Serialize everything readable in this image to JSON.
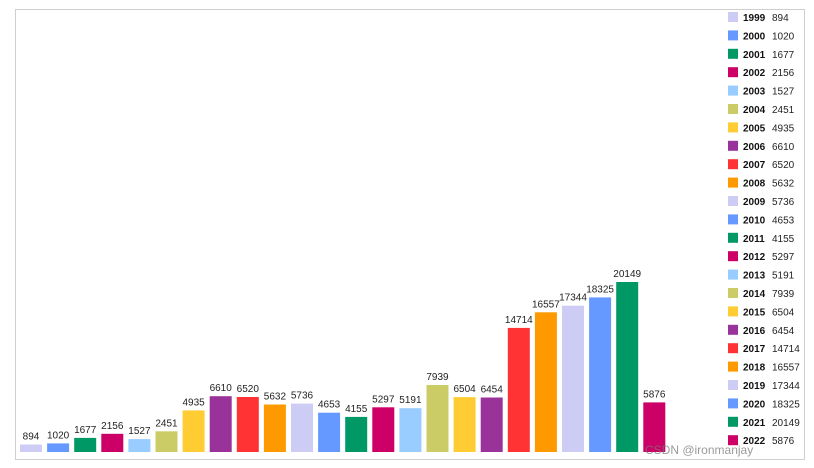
{
  "chart_data": {
    "type": "bar",
    "categories": [
      "1999",
      "2000",
      "2001",
      "2002",
      "2003",
      "2004",
      "2005",
      "2006",
      "2007",
      "2008",
      "2009",
      "2010",
      "2011",
      "2012",
      "2013",
      "2014",
      "2015",
      "2016",
      "2017",
      "2018",
      "2019",
      "2020",
      "2021",
      "2022"
    ],
    "values": [
      894,
      1020,
      1677,
      2156,
      1527,
      2451,
      4935,
      6610,
      6520,
      5632,
      5736,
      4653,
      4155,
      5297,
      5191,
      7939,
      6504,
      6454,
      14714,
      16557,
      17344,
      18325,
      20149,
      5876
    ],
    "colors": [
      "#ccccf5",
      "#6699ff",
      "#009966",
      "#cc0066",
      "#99ccff",
      "#cccc66",
      "#ffcc33",
      "#993399",
      "#ff3333",
      "#ff9900",
      "#ccccf5",
      "#6699ff",
      "#009966",
      "#cc0066",
      "#99ccff",
      "#cccc66",
      "#ffcc33",
      "#993399",
      "#ff3333",
      "#ff9900",
      "#ccccf5",
      "#6699ff",
      "#009966",
      "#cc0066"
    ],
    "ylim": [
      0,
      22000
    ],
    "grid": false,
    "legend_position": "right",
    "title": "",
    "xlabel": "",
    "ylabel": ""
  },
  "watermark": "CSDN @ironmanjay"
}
